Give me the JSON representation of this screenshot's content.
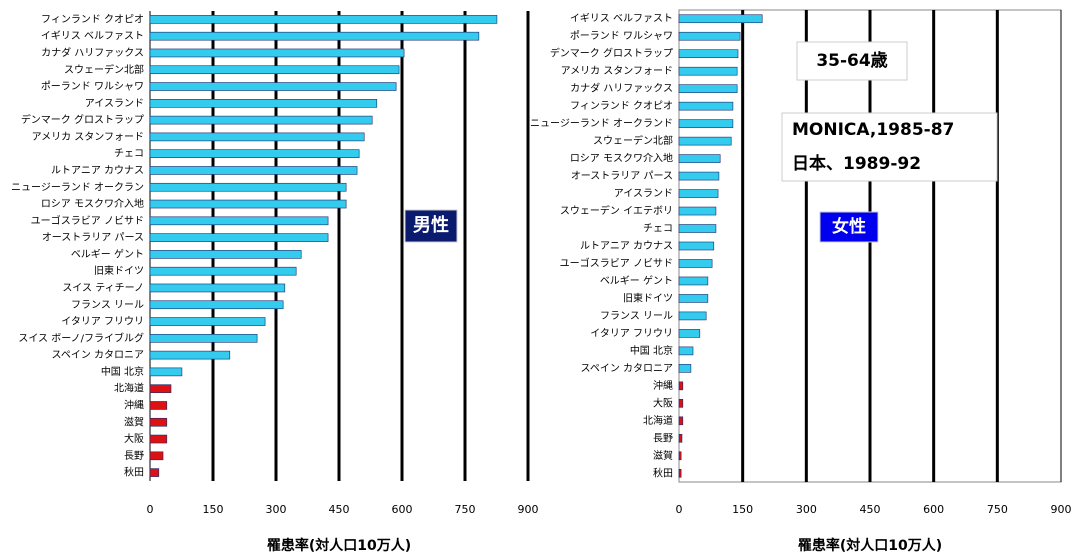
{
  "chart_data": [
    {
      "type": "bar",
      "orientation": "horizontal",
      "x_label": "罹患率(対人口10万人)",
      "categories": [
        "フィンランド クオピオ",
        "イギリス ベルファスト",
        "カナダ ハリファックス",
        "スウェーデン北部",
        "ポーランド ワルシャワ",
        "アイスランド",
        "デンマーク グロストラップ",
        "アメリカ スタンフォード",
        "チェコ",
        "ルトアニア カウナス",
        "ニュージーランド オークラン",
        "ロシア モスクワ介入地",
        "ユーゴスラビア ノビサド",
        "オーストラリア パース",
        "ベルギー ゲント",
        "旧東ドイツ",
        "スイス ティチーノ",
        "フランス リール",
        "イタリア フリウリ",
        "スイス ボーノ/フライブルグ",
        "スペイン カタロニア",
        "中国 北京",
        "北海道",
        "沖縄",
        "滋賀",
        "大阪",
        "長野",
        "秋田"
      ],
      "values": [
        826,
        783,
        605,
        593,
        586,
        540,
        529,
        510,
        498,
        493,
        467,
        467,
        424,
        424,
        360,
        348,
        321,
        317,
        274,
        255,
        190,
        76,
        50,
        40,
        40,
        40,
        31,
        21
      ],
      "colors": [
        "#33ccee",
        "#33ccee",
        "#33ccee",
        "#33ccee",
        "#33ccee",
        "#33ccee",
        "#33ccee",
        "#33ccee",
        "#33ccee",
        "#33ccee",
        "#33ccee",
        "#33ccee",
        "#33ccee",
        "#33ccee",
        "#33ccee",
        "#33ccee",
        "#33ccee",
        "#33ccee",
        "#33ccee",
        "#33ccee",
        "#33ccee",
        "#33ccee",
        "#dd1111",
        "#dd1111",
        "#dd1111",
        "#dd1111",
        "#dd1111",
        "#dd1111"
      ],
      "xlim": [
        0,
        900
      ],
      "xticks": [
        0,
        150,
        300,
        450,
        600,
        750,
        900
      ],
      "grid": true,
      "annotations": [
        "男性"
      ]
    },
    {
      "type": "bar",
      "orientation": "horizontal",
      "x_label": "罹患率(対人口10万人)",
      "categories": [
        "イギリス ベルファスト",
        "ポーランド ワルシャワ",
        "デンマーク グロストラップ",
        "アメリカ スタンフォード",
        "カナダ ハリファックス",
        "フィンランド クオピオ",
        "ニュージーランド オークランド",
        "スウェーデン北部",
        "ロシア モスクワ介入地",
        "オーストラリア パース",
        "アイスランド",
        "スウェーデン イエテボリ",
        "チェコ",
        "ルトアニア カウナス",
        "ユーゴスラビア ノビサド",
        "ベルギー ゲント",
        "旧東ドイツ",
        "フランス リール",
        "イタリア フリウリ",
        "中国 北京",
        "スペイン カタロニア",
        "沖縄",
        "大阪",
        "北海道",
        "長野",
        "滋賀",
        "秋田"
      ],
      "values": [
        196,
        144,
        139,
        137,
        137,
        127,
        127,
        123,
        97,
        94,
        92,
        87,
        87,
        82,
        78,
        68,
        68,
        64,
        49,
        33,
        28,
        9,
        9,
        9,
        7,
        5,
        5
      ],
      "colors": [
        "#33ccee",
        "#33ccee",
        "#33ccee",
        "#33ccee",
        "#33ccee",
        "#33ccee",
        "#33ccee",
        "#33ccee",
        "#33ccee",
        "#33ccee",
        "#33ccee",
        "#33ccee",
        "#33ccee",
        "#33ccee",
        "#33ccee",
        "#33ccee",
        "#33ccee",
        "#33ccee",
        "#33ccee",
        "#33ccee",
        "#33ccee",
        "#dd1111",
        "#dd1111",
        "#dd1111",
        "#dd1111",
        "#dd1111",
        "#dd1111"
      ],
      "xlim": [
        0,
        900
      ],
      "xticks": [
        0,
        150,
        300,
        450,
        600,
        750,
        900
      ],
      "grid": true,
      "annotations": [
        "35-64歳",
        "MONICA,1985-87",
        "日本、1989-92",
        "女性"
      ]
    }
  ]
}
